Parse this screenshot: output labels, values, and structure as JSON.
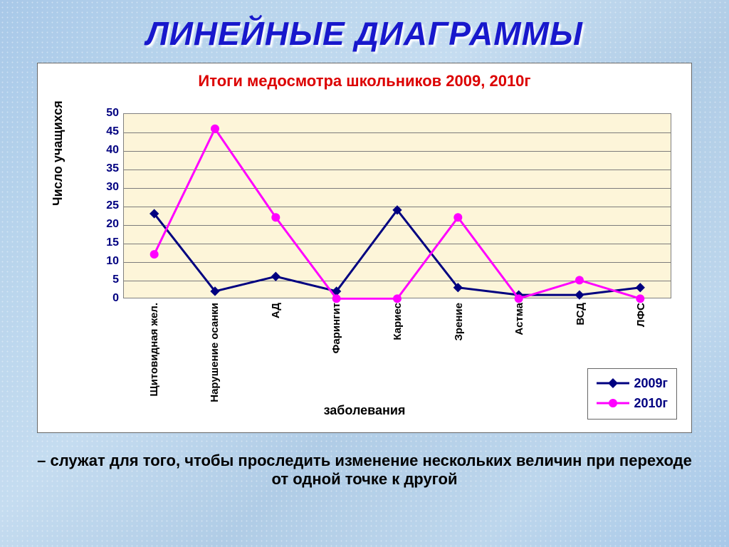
{
  "slide": {
    "title": "ЛИНЕЙНЫЕ ДИАГРАММЫ",
    "title_color": "#1818cc",
    "title_fontsize": 46,
    "caption": "– служат для того, чтобы проследить изменение нескольких величин при переходе от одной точке к другой",
    "background_gradient": [
      "#a8c8e8",
      "#c5dcf0"
    ]
  },
  "chart": {
    "type": "line",
    "title": "Итоги медосмотра школьников 2009, 2010г",
    "title_color": "#dc0000",
    "title_fontsize": 22,
    "xaxis_title": "заболевания",
    "yaxis_title": "Число учащихся",
    "background_color": "#ffffff",
    "plot_bg_color": "#fdf5d9",
    "grid_color": "#7c7c7c",
    "axis_color": "#808080",
    "ylim": [
      0,
      50
    ],
    "ytick_step": 5,
    "yticks": [
      0,
      5,
      10,
      15,
      20,
      25,
      30,
      35,
      40,
      45,
      50
    ],
    "tick_color": "#000080",
    "tick_fontsize": 16,
    "label_fontsize": 18,
    "categories": [
      "Щитовидная жел.",
      "Нарушение осанки",
      "АД",
      "Фарингит",
      "Кариес",
      "Зрение",
      "Астма",
      "ВСД",
      "ЛФС"
    ],
    "series": [
      {
        "name": "2009г",
        "color": "#000080",
        "marker": "diamond",
        "marker_size": 10,
        "line_width": 3,
        "values": [
          23,
          2,
          6,
          2,
          24,
          3,
          1,
          1,
          3
        ]
      },
      {
        "name": "2010г",
        "color": "#ff00ff",
        "marker": "circle",
        "marker_size": 12,
        "line_width": 3,
        "values": [
          12,
          46,
          22,
          0,
          0,
          22,
          0,
          5,
          0
        ]
      }
    ],
    "legend": {
      "position": "bottom-right",
      "border_color": "#666666",
      "font_color": "#000080",
      "fontsize": 18
    }
  }
}
